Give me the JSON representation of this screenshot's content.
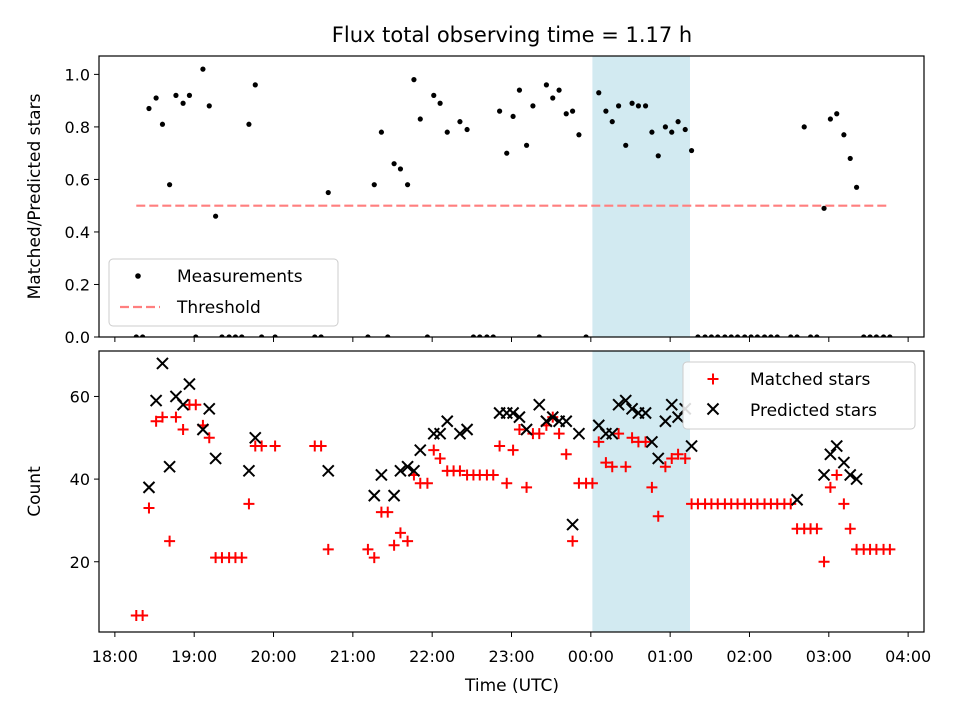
{
  "figure": {
    "title": "Flux total observing time = 1.17 h",
    "xlabel": "Time (UTC)",
    "x_ticks": [
      "18:00",
      "19:00",
      "20:00",
      "21:00",
      "22:00",
      "23:00",
      "00:00",
      "01:00",
      "02:00",
      "03:00",
      "04:00"
    ]
  },
  "colors": {
    "measurement": "#000000",
    "threshold": "#ff7f7f",
    "matched": "#ff0000",
    "predicted": "#000000",
    "highlight": "#add8e6"
  },
  "chart_data": [
    {
      "type": "scatter",
      "panel": "top",
      "ylabel": "Matched/Predicted stars",
      "xlim": [
        -0.2,
        10.2
      ],
      "ylim": [
        0,
        1.07
      ],
      "y_ticks": [
        "0.0",
        "0.2",
        "0.4",
        "0.6",
        "0.8",
        "1.0"
      ],
      "y_tick_values": [
        0,
        0.2,
        0.4,
        0.6,
        0.8,
        1.0
      ],
      "x_unit": "hours since 18:00 UTC",
      "highlight": {
        "x_start": 6.02,
        "x_end": 7.25
      },
      "legend_position": "lower-left",
      "legend": [
        {
          "label": "Measurements",
          "marker": "dot"
        },
        {
          "label": "Threshold",
          "marker": "dashed-line"
        }
      ],
      "threshold": {
        "name": "Threshold",
        "value": 0.5,
        "x": [
          0.27,
          9.73
        ]
      },
      "series": [
        {
          "name": "Measurements",
          "points": [
            [
              0.27,
              0
            ],
            [
              0.35,
              0
            ],
            [
              0.43,
              0.87
            ],
            [
              0.52,
              0.91
            ],
            [
              0.6,
              0.81
            ],
            [
              0.69,
              0.58
            ],
            [
              0.77,
              0.92
            ],
            [
              0.86,
              0.89
            ],
            [
              0.94,
              0.92
            ],
            [
              1.02,
              0
            ],
            [
              1.11,
              1.02
            ],
            [
              1.19,
              0.88
            ],
            [
              1.27,
              0.46
            ],
            [
              1.35,
              0
            ],
            [
              1.44,
              0
            ],
            [
              1.52,
              0
            ],
            [
              1.6,
              0
            ],
            [
              1.69,
              0.81
            ],
            [
              1.77,
              0.96
            ],
            [
              1.85,
              0
            ],
            [
              2.02,
              0
            ],
            [
              2.52,
              0
            ],
            [
              2.6,
              0
            ],
            [
              2.69,
              0.55
            ],
            [
              3.19,
              0
            ],
            [
              3.27,
              0.58
            ],
            [
              3.36,
              0.78
            ],
            [
              3.44,
              0
            ],
            [
              3.52,
              0.66
            ],
            [
              3.6,
              0.64
            ],
            [
              3.69,
              0.58
            ],
            [
              3.77,
              0.98
            ],
            [
              3.85,
              0.83
            ],
            [
              3.94,
              0
            ],
            [
              4.02,
              0.92
            ],
            [
              4.1,
              0.89
            ],
            [
              4.19,
              0.78
            ],
            [
              4.35,
              0.82
            ],
            [
              4.44,
              0.79
            ],
            [
              4.52,
              0
            ],
            [
              4.6,
              0
            ],
            [
              4.69,
              0
            ],
            [
              4.77,
              0
            ],
            [
              4.85,
              0.86
            ],
            [
              4.94,
              0.7
            ],
            [
              5.02,
              0.84
            ],
            [
              5.1,
              0.94
            ],
            [
              5.19,
              0.73
            ],
            [
              5.27,
              0.88
            ],
            [
              5.35,
              0
            ],
            [
              5.44,
              0.96
            ],
            [
              5.52,
              0.91
            ],
            [
              5.6,
              0.94
            ],
            [
              5.69,
              0.85
            ],
            [
              5.77,
              0.86
            ],
            [
              5.85,
              0.77
            ],
            [
              5.94,
              0
            ],
            [
              6.1,
              0.93
            ],
            [
              6.19,
              0.86
            ],
            [
              6.27,
              0.82
            ],
            [
              6.35,
              0.88
            ],
            [
              6.44,
              0.73
            ],
            [
              6.52,
              0.89
            ],
            [
              6.6,
              0.88
            ],
            [
              6.69,
              0.88
            ],
            [
              6.77,
              0.78
            ],
            [
              6.85,
              0.69
            ],
            [
              6.94,
              0.8
            ],
            [
              7.02,
              0.78
            ],
            [
              7.1,
              0.82
            ],
            [
              7.19,
              0.79
            ],
            [
              7.27,
              0.71
            ],
            [
              7.35,
              0
            ],
            [
              7.44,
              0
            ],
            [
              7.52,
              0
            ],
            [
              7.6,
              0
            ],
            [
              7.69,
              0
            ],
            [
              7.77,
              0
            ],
            [
              7.85,
              0
            ],
            [
              7.94,
              0
            ],
            [
              8.02,
              0
            ],
            [
              8.1,
              0
            ],
            [
              8.19,
              0
            ],
            [
              8.27,
              0
            ],
            [
              8.35,
              0
            ],
            [
              8.52,
              0
            ],
            [
              8.6,
              0
            ],
            [
              8.69,
              0.8
            ],
            [
              8.77,
              0
            ],
            [
              8.85,
              0
            ],
            [
              8.94,
              0.49
            ],
            [
              9.02,
              0.83
            ],
            [
              9.1,
              0.85
            ],
            [
              9.19,
              0.77
            ],
            [
              9.27,
              0.68
            ],
            [
              9.35,
              0.57
            ],
            [
              9.44,
              0
            ],
            [
              9.52,
              0
            ],
            [
              9.6,
              0
            ],
            [
              9.69,
              0
            ],
            [
              9.77,
              0
            ]
          ]
        }
      ]
    },
    {
      "type": "scatter",
      "panel": "bottom",
      "ylabel": "Count",
      "xlim": [
        -0.2,
        10.2
      ],
      "ylim": [
        3,
        71
      ],
      "y_ticks": [
        "20",
        "40",
        "60"
      ],
      "y_tick_values": [
        20,
        40,
        60
      ],
      "x_unit": "hours since 18:00 UTC",
      "highlight": {
        "x_start": 6.02,
        "x_end": 7.25
      },
      "legend_position": "upper-right",
      "legend": [
        {
          "label": "Matched stars",
          "marker": "plus"
        },
        {
          "label": "Predicted stars",
          "marker": "x"
        }
      ],
      "series": [
        {
          "name": "Matched stars",
          "points": [
            [
              0.27,
              7
            ],
            [
              0.35,
              7
            ],
            [
              0.43,
              33
            ],
            [
              0.52,
              54
            ],
            [
              0.6,
              55
            ],
            [
              0.69,
              25
            ],
            [
              0.77,
              55
            ],
            [
              0.86,
              52
            ],
            [
              0.94,
              58
            ],
            [
              1.02,
              58
            ],
            [
              1.11,
              53
            ],
            [
              1.19,
              50
            ],
            [
              1.27,
              21
            ],
            [
              1.35,
              21
            ],
            [
              1.44,
              21
            ],
            [
              1.52,
              21
            ],
            [
              1.6,
              21
            ],
            [
              1.69,
              34
            ],
            [
              1.77,
              48
            ],
            [
              1.85,
              48
            ],
            [
              2.02,
              48
            ],
            [
              2.52,
              48
            ],
            [
              2.6,
              48
            ],
            [
              2.69,
              23
            ],
            [
              3.19,
              23
            ],
            [
              3.27,
              21
            ],
            [
              3.36,
              32
            ],
            [
              3.44,
              32
            ],
            [
              3.52,
              24
            ],
            [
              3.6,
              27
            ],
            [
              3.69,
              25
            ],
            [
              3.77,
              41
            ],
            [
              3.85,
              39
            ],
            [
              3.94,
              39
            ],
            [
              4.02,
              47
            ],
            [
              4.1,
              45
            ],
            [
              4.19,
              42
            ],
            [
              4.27,
              42
            ],
            [
              4.35,
              42
            ],
            [
              4.44,
              41
            ],
            [
              4.52,
              41
            ],
            [
              4.6,
              41
            ],
            [
              4.69,
              41
            ],
            [
              4.77,
              41
            ],
            [
              4.85,
              48
            ],
            [
              4.94,
              39
            ],
            [
              5.02,
              47
            ],
            [
              5.1,
              52
            ],
            [
              5.19,
              38
            ],
            [
              5.27,
              51
            ],
            [
              5.35,
              51
            ],
            [
              5.44,
              53
            ],
            [
              5.52,
              55
            ],
            [
              5.6,
              51
            ],
            [
              5.69,
              46
            ],
            [
              5.77,
              25
            ],
            [
              5.85,
              39
            ],
            [
              5.94,
              39
            ],
            [
              6.02,
              39
            ],
            [
              6.1,
              49
            ],
            [
              6.19,
              44
            ],
            [
              6.27,
              43
            ],
            [
              6.35,
              51
            ],
            [
              6.44,
              43
            ],
            [
              6.52,
              50
            ],
            [
              6.6,
              49
            ],
            [
              6.69,
              49
            ],
            [
              6.77,
              38
            ],
            [
              6.85,
              31
            ],
            [
              6.94,
              43
            ],
            [
              7.02,
              45
            ],
            [
              7.1,
              46
            ],
            [
              7.19,
              45
            ],
            [
              7.27,
              34
            ],
            [
              7.35,
              34
            ],
            [
              7.44,
              34
            ],
            [
              7.52,
              34
            ],
            [
              7.6,
              34
            ],
            [
              7.69,
              34
            ],
            [
              7.77,
              34
            ],
            [
              7.85,
              34
            ],
            [
              7.94,
              34
            ],
            [
              8.02,
              34
            ],
            [
              8.1,
              34
            ],
            [
              8.19,
              34
            ],
            [
              8.27,
              34
            ],
            [
              8.35,
              34
            ],
            [
              8.44,
              34
            ],
            [
              8.52,
              34
            ],
            [
              8.6,
              28
            ],
            [
              8.69,
              28
            ],
            [
              8.77,
              28
            ],
            [
              8.85,
              28
            ],
            [
              8.94,
              20
            ],
            [
              9.02,
              38
            ],
            [
              9.1,
              41
            ],
            [
              9.19,
              34
            ],
            [
              9.27,
              28
            ],
            [
              9.35,
              23
            ],
            [
              9.44,
              23
            ],
            [
              9.52,
              23
            ],
            [
              9.6,
              23
            ],
            [
              9.69,
              23
            ],
            [
              9.77,
              23
            ]
          ]
        },
        {
          "name": "Predicted stars",
          "points": [
            [
              0.43,
              38
            ],
            [
              0.52,
              59
            ],
            [
              0.6,
              68
            ],
            [
              0.69,
              43
            ],
            [
              0.77,
              60
            ],
            [
              0.86,
              58
            ],
            [
              0.94,
              63
            ],
            [
              1.11,
              52
            ],
            [
              1.19,
              57
            ],
            [
              1.27,
              45
            ],
            [
              1.69,
              42
            ],
            [
              1.77,
              50
            ],
            [
              2.69,
              42
            ],
            [
              3.27,
              36
            ],
            [
              3.36,
              41
            ],
            [
              3.52,
              36
            ],
            [
              3.6,
              42
            ],
            [
              3.69,
              43
            ],
            [
              3.77,
              42
            ],
            [
              3.85,
              47
            ],
            [
              4.02,
              51
            ],
            [
              4.1,
              51
            ],
            [
              4.19,
              54
            ],
            [
              4.35,
              51
            ],
            [
              4.44,
              52
            ],
            [
              4.85,
              56
            ],
            [
              4.94,
              56
            ],
            [
              5.02,
              56
            ],
            [
              5.1,
              55
            ],
            [
              5.19,
              52
            ],
            [
              5.35,
              58
            ],
            [
              5.44,
              54
            ],
            [
              5.52,
              55
            ],
            [
              5.6,
              54
            ],
            [
              5.69,
              54
            ],
            [
              5.77,
              29
            ],
            [
              5.85,
              51
            ],
            [
              6.1,
              53
            ],
            [
              6.19,
              51
            ],
            [
              6.27,
              51
            ],
            [
              6.35,
              58
            ],
            [
              6.44,
              59
            ],
            [
              6.52,
              57
            ],
            [
              6.6,
              56
            ],
            [
              6.69,
              56
            ],
            [
              6.77,
              49
            ],
            [
              6.85,
              45
            ],
            [
              6.94,
              54
            ],
            [
              7.02,
              58
            ],
            [
              7.1,
              55
            ],
            [
              7.19,
              57
            ],
            [
              7.27,
              48
            ],
            [
              8.6,
              35
            ],
            [
              8.94,
              41
            ],
            [
              9.02,
              46
            ],
            [
              9.1,
              48
            ],
            [
              9.19,
              44
            ],
            [
              9.27,
              41
            ],
            [
              9.35,
              40
            ]
          ]
        }
      ]
    }
  ]
}
